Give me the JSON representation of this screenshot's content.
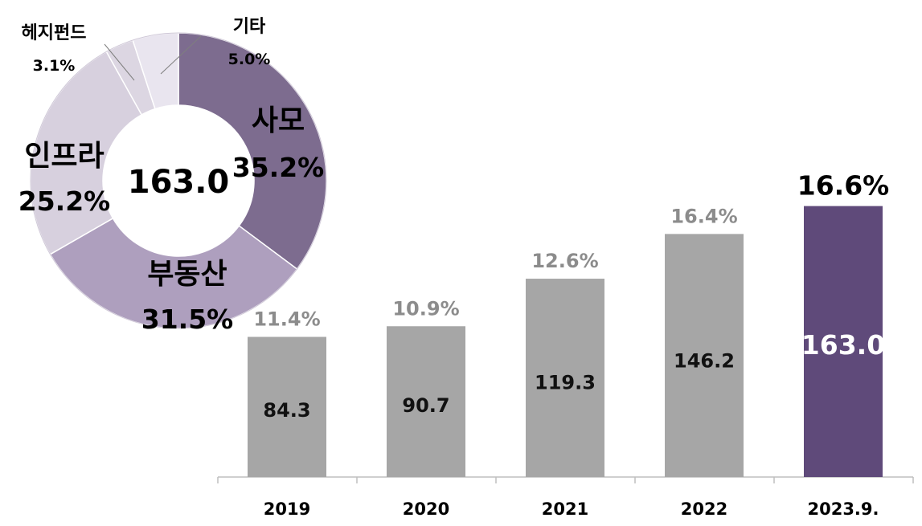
{
  "chart_data": [
    {
      "type": "pie",
      "center_label": "163.0",
      "slices": [
        {
          "name": "사모",
          "value": 35.2,
          "label": "35.2%",
          "color": "#7d6c8f"
        },
        {
          "name": "부동산",
          "value": 31.5,
          "label": "31.5%",
          "color": "#ae9fbe"
        },
        {
          "name": "인프라",
          "value": 25.2,
          "label": "25.2%",
          "color": "#d7d0de"
        },
        {
          "name": "헤지펀드",
          "value": 3.1,
          "label": "3.1%",
          "color": "#dcd6e2"
        },
        {
          "name": "기타",
          "value": 5.0,
          "label": "5.0%",
          "color": "#e9e5ef"
        }
      ]
    },
    {
      "type": "bar",
      "categories": [
        "2019",
        "2020",
        "2021",
        "2022",
        "2023.9."
      ],
      "values": [
        84.3,
        90.7,
        119.3,
        146.2,
        163.0
      ],
      "value_labels": [
        "84.3",
        "90.7",
        "119.3",
        "146.2",
        "163.0"
      ],
      "top_labels": [
        "11.4%",
        "10.9%",
        "12.6%",
        "16.4%",
        "16.6%"
      ],
      "bar_colors": [
        "#a6a6a6",
        "#a6a6a6",
        "#a6a6a6",
        "#a6a6a6",
        "#5f4a7a"
      ],
      "top_label_colors": [
        "#8c8c8c",
        "#8c8c8c",
        "#8c8c8c",
        "#8c8c8c",
        "#000000"
      ],
      "value_label_colors": [
        "#111111",
        "#111111",
        "#111111",
        "#111111",
        "#ffffff"
      ]
    }
  ]
}
